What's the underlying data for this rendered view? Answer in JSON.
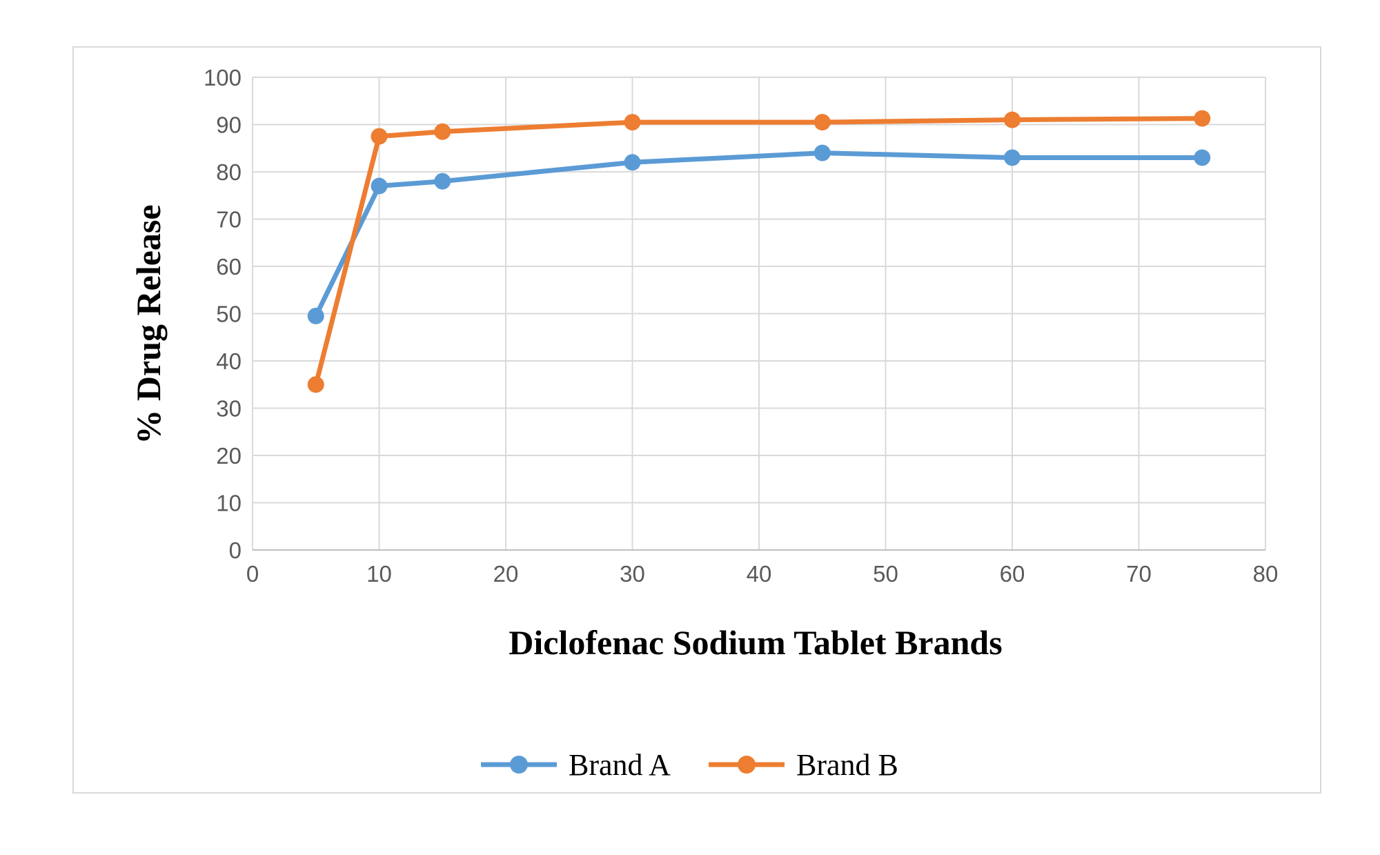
{
  "chart_data": {
    "type": "line",
    "title": "",
    "xlabel": "Diclofenac Sodium Tablet Brands",
    "ylabel": "% Drug Release",
    "xlim": [
      0,
      80
    ],
    "ylim": [
      0,
      100
    ],
    "xticks": [
      0,
      10,
      20,
      30,
      40,
      50,
      60,
      70,
      80
    ],
    "yticks": [
      0,
      10,
      20,
      30,
      40,
      50,
      60,
      70,
      80,
      90,
      100
    ],
    "grid": true,
    "legend_position": "bottom",
    "series": [
      {
        "name": "Brand A",
        "color": "#5b9bd5",
        "x": [
          5,
          10,
          15,
          30,
          45,
          60,
          75
        ],
        "y": [
          49.5,
          77,
          78,
          82,
          84,
          83,
          83
        ]
      },
      {
        "name": "Brand B",
        "color": "#ed7d31",
        "x": [
          5,
          10,
          15,
          30,
          45,
          60,
          75
        ],
        "y": [
          35,
          87.5,
          88.5,
          90.5,
          90.5,
          91,
          91.3
        ]
      }
    ]
  }
}
